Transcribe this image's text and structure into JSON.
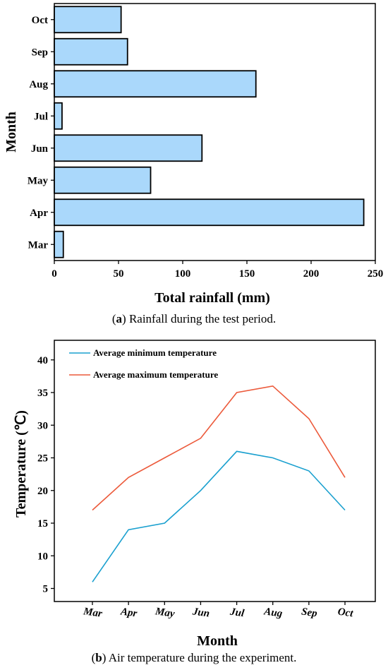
{
  "captions": {
    "a_letter": "a",
    "a_text": " Rainfall during the test period.",
    "b_letter": "b",
    "b_text": " Air temperature during the experiment."
  },
  "chart_data": [
    {
      "type": "bar",
      "orientation": "horizontal",
      "categories": [
        "Mar",
        "Apr",
        "May",
        "Jun",
        "Jul",
        "Aug",
        "Sep",
        "Oct"
      ],
      "values": [
        7,
        241,
        75,
        115,
        6,
        157,
        57,
        52
      ],
      "xlabel": "Total rainfall (mm)",
      "ylabel": "Month",
      "xlim": [
        0,
        250
      ],
      "xticks": [
        0,
        50,
        100,
        150,
        200,
        250
      ],
      "bar_color": "#aad8fb",
      "edge_color": "#000000",
      "grid": false
    },
    {
      "type": "line",
      "categories": [
        "Mar",
        "Apr",
        "May",
        "Jun",
        "Jul",
        "Aug",
        "Sep",
        "Oct"
      ],
      "series": [
        {
          "name": "Average minimum temperature",
          "values": [
            6,
            14,
            15,
            20,
            26,
            25,
            23,
            17
          ],
          "color": "#1aa0cf"
        },
        {
          "name": "Average maximum temperature",
          "values": [
            17,
            22,
            25,
            28,
            35,
            36,
            31,
            22
          ],
          "color": "#ec5a3b"
        }
      ],
      "xlabel": "Month",
      "ylabel": "Temperature (℃)",
      "ylim": [
        3,
        43
      ],
      "yticks": [
        5,
        10,
        15,
        20,
        25,
        30,
        35,
        40
      ],
      "legend_position": "top-left",
      "grid": false
    }
  ]
}
